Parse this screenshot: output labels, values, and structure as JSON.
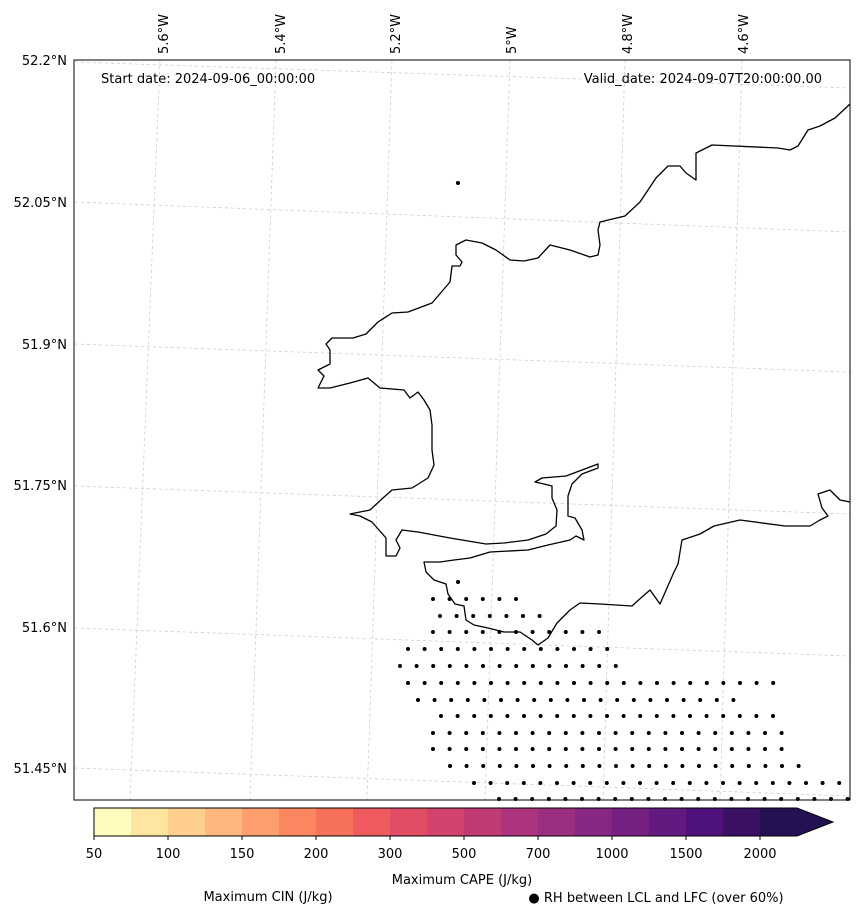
{
  "map": {
    "start_date_label": "Start date: 2024-09-06_00:00:00",
    "valid_date_label": "Valid_date: 2024-09-07T20:00:00.00",
    "lon_labels": [
      "5.6°W",
      "5.4°W",
      "5.2°W",
      "5°W",
      "4.8°W",
      "4.6°W"
    ],
    "lat_labels": [
      "52.2°N",
      "52.05°N",
      "51.9°N",
      "51.75°N",
      "51.6°N",
      "51.45°N"
    ],
    "gridlines": true,
    "coastline_color": "#000000",
    "rh_marker": "dots"
  },
  "colorbar": {
    "label": "Maximum CAPE (J/kg)",
    "ticks": [
      "50",
      "100",
      "150",
      "200",
      "300",
      "500",
      "700",
      "1000",
      "1500",
      "2000"
    ],
    "colors": [
      "#fefdbe",
      "#fee5a0",
      "#fecf8d",
      "#feb77e",
      "#fd9f6c",
      "#fb8761",
      "#f7705c",
      "#ef5a5e",
      "#e24d66",
      "#d3436e",
      "#c03a76",
      "#ad347c",
      "#9a2e80",
      "#872781",
      "#741f81",
      "#621a80",
      "#4f127b",
      "#3a1065",
      "#231151"
    ],
    "extend": "max"
  },
  "legend": {
    "cin_label": "Maximum CIN (J/kg)",
    "cin_color": "#ff0000",
    "rh_label": "● RH between LCL and LFC (over 60%)"
  }
}
